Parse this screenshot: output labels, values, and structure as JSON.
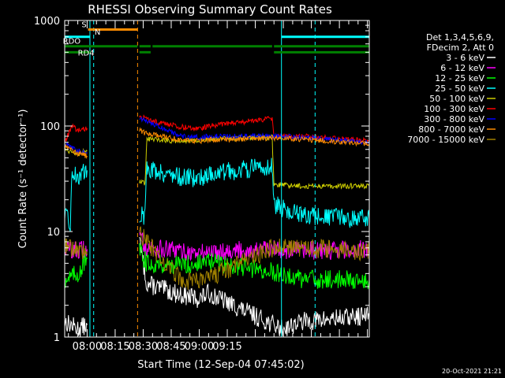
{
  "chart_data": {
    "type": "line",
    "title": "RHESSI Observing Summary Count Rates",
    "xlabel": "Start Time (12-Sep-04 07:45:02)",
    "ylabel": "Count Rate (s⁻¹ detector⁻¹)",
    "yscale": "log",
    "ylim": [
      1,
      1000
    ],
    "xlim_minutes": [
      -12,
      151
    ],
    "x_ticks": [
      {
        "label": "08:00",
        "minute": 0
      },
      {
        "label": "08:15",
        "minute": 15
      },
      {
        "label": "08:30",
        "minute": 30
      },
      {
        "label": "08:45",
        "minute": 45
      },
      {
        "label": "09:00",
        "minute": 60
      },
      {
        "label": "09:15",
        "minute": 75
      }
    ],
    "y_ticks": [
      {
        "label": "1",
        "value": 1
      },
      {
        "label": "10",
        "value": 10
      },
      {
        "label": "100",
        "value": 100
      },
      {
        "label": "1000",
        "value": 1000
      }
    ],
    "legend_header": [
      "Det 1,3,4,5,6,9,",
      "FDecim 2, Att 0"
    ],
    "legend_placement": "right",
    "timestamp": "20-Oct-2021 21:21",
    "flag_bars": [
      {
        "label": "S",
        "color": "#ff8c00",
        "value": 820,
        "segments": [
          [
            0.5,
            27
          ]
        ]
      },
      {
        "label": "N",
        "color": "#00ffff",
        "value": 700,
        "segments": [
          [
            -12,
            1.5
          ],
          [
            104,
            151
          ]
        ]
      },
      {
        "label": "RDO",
        "color": "#008000",
        "value": 570,
        "segments": [
          [
            -12,
            27
          ],
          [
            28,
            34
          ],
          [
            35,
            99
          ],
          [
            100,
            151
          ]
        ]
      },
      {
        "label": "RD4",
        "color": "#008000",
        "value": 500,
        "segments": [
          [
            -12,
            2
          ],
          [
            28,
            34
          ],
          [
            100,
            151
          ]
        ]
      }
    ],
    "vlines": [
      {
        "minute": 1.5,
        "color": "#00ffff",
        "style": "solid"
      },
      {
        "minute": 3.5,
        "color": "#00ffff",
        "style": "dashed"
      },
      {
        "minute": 27,
        "color": "#ff8c00",
        "style": "dashed"
      },
      {
        "minute": 104,
        "color": "#00ffff",
        "style": "solid"
      },
      {
        "minute": 122,
        "color": "#00ffff",
        "style": "dashed"
      }
    ],
    "series": [
      {
        "name": "3 - 6 keV",
        "color": "#ffffff",
        "points": [
          [
            -12,
            1.4
          ],
          [
            -5,
            1.2
          ],
          [
            0,
            1.3
          ],
          [
            28,
            8
          ],
          [
            32,
            3.2
          ],
          [
            50,
            2.5
          ],
          [
            60,
            2.3
          ],
          [
            65,
            2.6
          ],
          [
            104,
            1.2
          ],
          [
            115,
            1.4
          ],
          [
            151,
            1.6
          ]
        ]
      },
      {
        "name": "6 - 12 keV",
        "color": "#ff00ff",
        "points": [
          [
            -12,
            7
          ],
          [
            -5,
            6.5
          ],
          [
            0,
            6.8
          ],
          [
            28,
            9
          ],
          [
            32,
            7
          ],
          [
            50,
            6.5
          ],
          [
            60,
            6.2
          ],
          [
            65,
            6.5
          ],
          [
            104,
            6.8
          ],
          [
            115,
            6.5
          ],
          [
            151,
            6.8
          ]
        ]
      },
      {
        "name": "12 - 25 keV",
        "color": "#00ff00",
        "points": [
          [
            -12,
            3.5
          ],
          [
            -5,
            4
          ],
          [
            0,
            5.5
          ],
          [
            28,
            6.5
          ],
          [
            32,
            5
          ],
          [
            50,
            4.8
          ],
          [
            60,
            5
          ],
          [
            65,
            5.2
          ],
          [
            104,
            4
          ],
          [
            115,
            3.5
          ],
          [
            151,
            3.5
          ]
        ]
      },
      {
        "name": "25 - 50 keV",
        "color": "#00ffff",
        "points": [
          [
            -12,
            14
          ],
          [
            -9,
            12
          ],
          [
            -8,
            36
          ],
          [
            -5,
            33
          ],
          [
            0,
            38
          ],
          [
            28,
            15
          ],
          [
            31,
            14
          ],
          [
            32,
            40
          ],
          [
            50,
            33
          ],
          [
            60,
            32
          ],
          [
            65,
            35
          ],
          [
            99,
            42
          ],
          [
            100,
            18
          ],
          [
            115,
            14
          ],
          [
            151,
            13
          ]
        ]
      },
      {
        "name": "50 - 100 keV",
        "color": "#cccc00",
        "points": [
          [
            -12,
            60
          ],
          [
            -5,
            55
          ],
          [
            0,
            58
          ],
          [
            28,
            30
          ],
          [
            31,
            28
          ],
          [
            32,
            75
          ],
          [
            50,
            72
          ],
          [
            60,
            73
          ],
          [
            65,
            75
          ],
          [
            99,
            78
          ],
          [
            100,
            28
          ],
          [
            115,
            27
          ],
          [
            151,
            27
          ]
        ]
      },
      {
        "name": "100 - 300 keV",
        "color": "#ff0000",
        "points": [
          [
            -12,
            70
          ],
          [
            -8,
            100
          ],
          [
            -5,
            90
          ],
          [
            0,
            95
          ],
          [
            28,
            125
          ],
          [
            32,
            115
          ],
          [
            50,
            98
          ],
          [
            60,
            95
          ],
          [
            65,
            100
          ],
          [
            99,
            118
          ],
          [
            100,
            80
          ],
          [
            115,
            80
          ],
          [
            151,
            72
          ]
        ]
      },
      {
        "name": "300 - 800 keV",
        "color": "#0000ff",
        "points": [
          [
            -12,
            68
          ],
          [
            -5,
            58
          ],
          [
            0,
            55
          ],
          [
            28,
            120
          ],
          [
            32,
            110
          ],
          [
            50,
            80
          ],
          [
            60,
            78
          ],
          [
            65,
            80
          ],
          [
            99,
            80
          ],
          [
            115,
            78
          ],
          [
            151,
            70
          ]
        ]
      },
      {
        "name": "800 - 7000 keV",
        "color": "#ff8c00",
        "points": [
          [
            -12,
            66
          ],
          [
            -5,
            55
          ],
          [
            0,
            52
          ],
          [
            28,
            90
          ],
          [
            32,
            85
          ],
          [
            50,
            74
          ],
          [
            60,
            72
          ],
          [
            65,
            74
          ],
          [
            99,
            77
          ],
          [
            115,
            75
          ],
          [
            151,
            68
          ]
        ]
      },
      {
        "name": "7000 - 15000 keV",
        "color": "#a08000",
        "points": [
          [
            -12,
            7.5
          ],
          [
            -5,
            6.5
          ],
          [
            0,
            6
          ],
          [
            28,
            10
          ],
          [
            32,
            8
          ],
          [
            50,
            3.5
          ],
          [
            60,
            3.3
          ],
          [
            65,
            3.6
          ],
          [
            99,
            7
          ],
          [
            115,
            7
          ],
          [
            151,
            6.5
          ]
        ]
      }
    ]
  }
}
